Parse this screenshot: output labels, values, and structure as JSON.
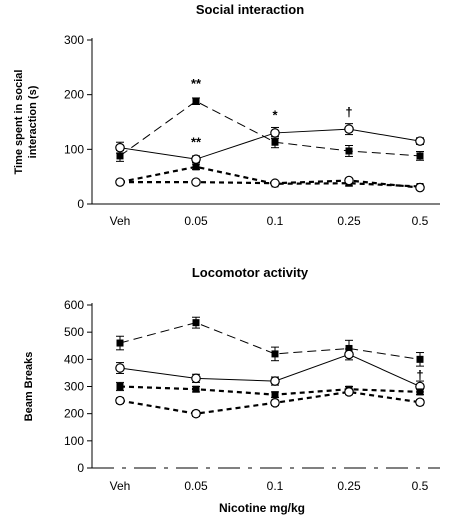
{
  "chart_data": [
    {
      "type": "line",
      "title": "Social interaction",
      "ylabel": "Time spent in social interaction (s)",
      "ylim": [
        0,
        300
      ],
      "yticks": [
        0,
        100,
        200,
        300
      ],
      "categories": [
        "Veh",
        "0.05",
        "0.1",
        "0.25",
        "0.5"
      ],
      "series": [
        {
          "marker": "filled-square",
          "line": "dash",
          "values": [
            88,
            188,
            113,
            97,
            88
          ],
          "errors": [
            10,
            6,
            10,
            10,
            8
          ]
        },
        {
          "marker": "open-circle",
          "line": "solid",
          "values": [
            103,
            82,
            130,
            137,
            115
          ],
          "errors": [
            10,
            6,
            10,
            10,
            6
          ]
        },
        {
          "marker": "filled-square",
          "line": "dotted",
          "values": [
            40,
            68,
            37,
            38,
            32
          ],
          "errors": [
            3,
            5,
            3,
            5,
            3
          ]
        },
        {
          "marker": "open-circle",
          "line": "dotted",
          "values": [
            40,
            40,
            38,
            43,
            30
          ],
          "errors": [
            3,
            3,
            3,
            3,
            3
          ]
        }
      ],
      "annotations": [
        {
          "text": "**",
          "x": "0.05",
          "y": 212
        },
        {
          "text": "**",
          "x": "0.05",
          "y": 105
        },
        {
          "text": "*",
          "x": "0.1",
          "y": 155
        },
        {
          "text": "†",
          "x": "0.25",
          "y": 160
        }
      ]
    },
    {
      "type": "line",
      "title": "Locomotor activity",
      "xlabel": "Nicotine mg/kg",
      "ylabel": "Beam Breaks",
      "ylim": [
        0,
        600
      ],
      "yticks": [
        0,
        100,
        200,
        300,
        400,
        500,
        600
      ],
      "categories": [
        "Veh",
        "0.05",
        "0.1",
        "0.25",
        "0.5"
      ],
      "series": [
        {
          "marker": "filled-square",
          "line": "dash",
          "values": [
            460,
            535,
            420,
            440,
            400
          ],
          "errors": [
            25,
            20,
            25,
            30,
            25
          ]
        },
        {
          "marker": "open-circle",
          "line": "solid",
          "values": [
            368,
            330,
            320,
            418,
            300
          ],
          "errors": [
            20,
            15,
            15,
            20,
            20
          ]
        },
        {
          "marker": "filled-square",
          "line": "dotted",
          "values": [
            300,
            290,
            270,
            290,
            280
          ],
          "errors": [
            15,
            10,
            10,
            10,
            10
          ]
        },
        {
          "marker": "open-circle",
          "line": "dotted",
          "values": [
            248,
            200,
            240,
            280,
            242
          ],
          "errors": [
            10,
            10,
            10,
            10,
            10
          ]
        }
      ],
      "annotations": [
        {
          "text": "†",
          "x": "0.5",
          "y": 325
        }
      ]
    }
  ]
}
